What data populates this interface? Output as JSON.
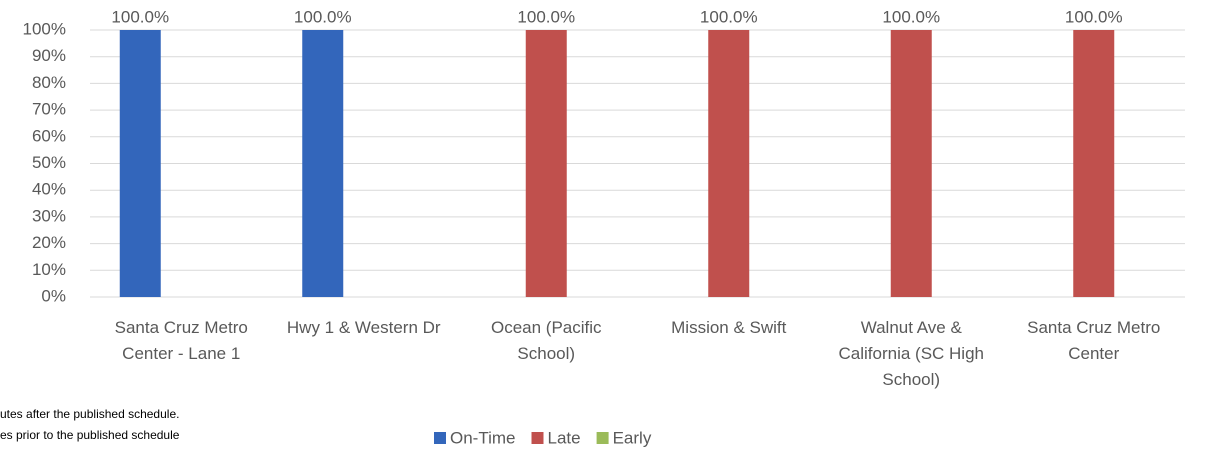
{
  "chart_data": {
    "type": "bar",
    "categories": [
      "Santa Cruz Metro Center - Lane 1",
      "Hwy 1 & Western Dr",
      "Ocean (Pacific School)",
      "Mission & Swift",
      "Walnut Ave & California (SC High School)",
      "Santa Cruz Metro Center"
    ],
    "series": [
      {
        "name": "On-Time",
        "color": "#3366bb",
        "values": [
          100,
          100,
          null,
          null,
          null,
          null
        ],
        "value_labels": [
          "100.0%",
          "100.0%",
          null,
          null,
          null,
          null
        ]
      },
      {
        "name": "Late",
        "color": "#c0504d",
        "values": [
          null,
          null,
          100,
          100,
          100,
          100
        ],
        "value_labels": [
          null,
          null,
          "100.0%",
          "100.0%",
          "100.0%",
          "100.0%"
        ]
      },
      {
        "name": "Early",
        "color": "#9bbb59",
        "values": [
          null,
          null,
          null,
          null,
          null,
          null
        ],
        "value_labels": [
          null,
          null,
          null,
          null,
          null,
          null
        ]
      }
    ],
    "ylim": [
      0,
      100
    ],
    "yticks": [
      {
        "value": 0,
        "label": "0%"
      },
      {
        "value": 10,
        "label": "10%"
      },
      {
        "value": 20,
        "label": "20%"
      },
      {
        "value": 30,
        "label": "30%"
      },
      {
        "value": 40,
        "label": "40%"
      },
      {
        "value": 50,
        "label": "50%"
      },
      {
        "value": 60,
        "label": "60%"
      },
      {
        "value": 70,
        "label": "70%"
      },
      {
        "value": 80,
        "label": "80%"
      },
      {
        "value": 90,
        "label": "90%"
      },
      {
        "value": 100,
        "label": "100%"
      }
    ],
    "grid": true,
    "legend": "bottom",
    "notes": [
      "utes after the published schedule.",
      "es prior to the published schedule"
    ]
  }
}
